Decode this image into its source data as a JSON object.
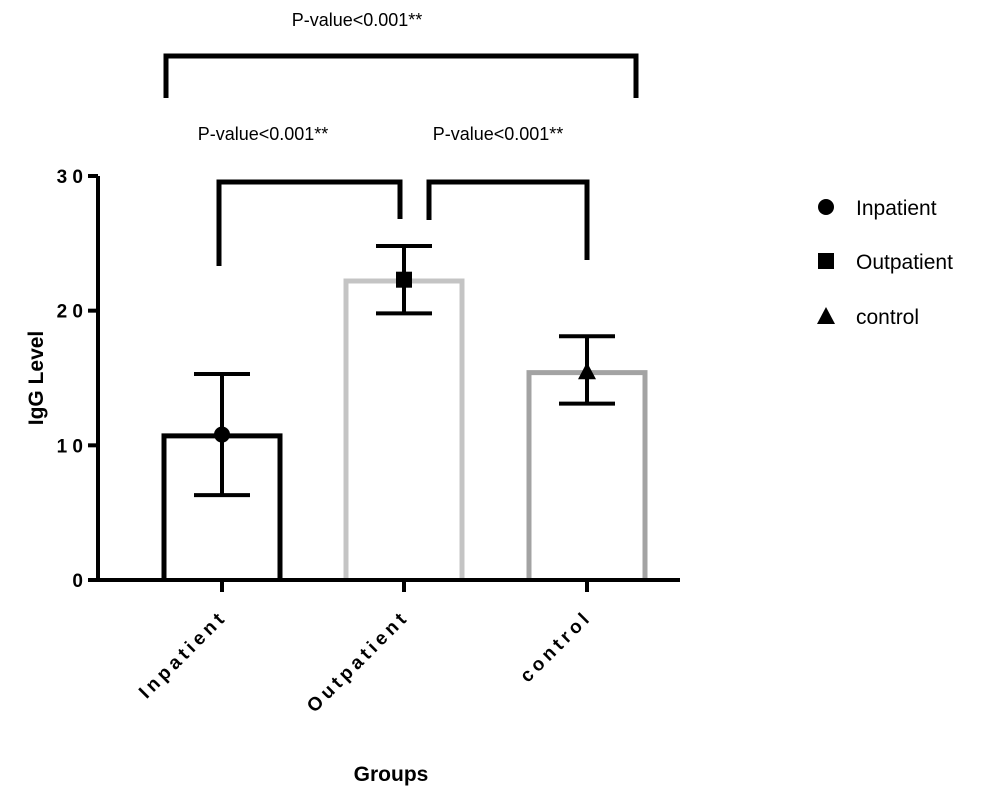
{
  "chart_data": {
    "type": "bar",
    "title": "",
    "xlabel": "Groups",
    "ylabel": "IgG Level",
    "ylim": [
      0,
      30
    ],
    "yticks": [
      0,
      10,
      20,
      30
    ],
    "grid": false,
    "legend_position": "right",
    "categories": [
      "Inpatient",
      "Outpatient",
      "control"
    ],
    "values": [
      10.7,
      22.2,
      15.4
    ],
    "means": [
      10.8,
      22.3,
      15.5
    ],
    "error_low": [
      6.3,
      19.8,
      13.1
    ],
    "error_high": [
      15.3,
      24.8,
      18.1
    ],
    "markers": [
      "circle",
      "square",
      "triangle"
    ],
    "bar_colors": [
      "#000000",
      "#c4c4c4",
      "#a3a3a3"
    ],
    "legend": [
      {
        "label": "Inpatient",
        "marker": "circle"
      },
      {
        "label": "Outpatient",
        "marker": "square"
      },
      {
        "label": "control",
        "marker": "triangle"
      }
    ],
    "comparisons": [
      {
        "groups": [
          "Inpatient",
          "Outpatient"
        ],
        "label": "P-value<0.001**"
      },
      {
        "groups": [
          "Outpatient",
          "control"
        ],
        "label": "P-value<0.001**"
      },
      {
        "groups": [
          "Inpatient",
          "control"
        ],
        "label": "P-value<0.001**"
      }
    ]
  }
}
